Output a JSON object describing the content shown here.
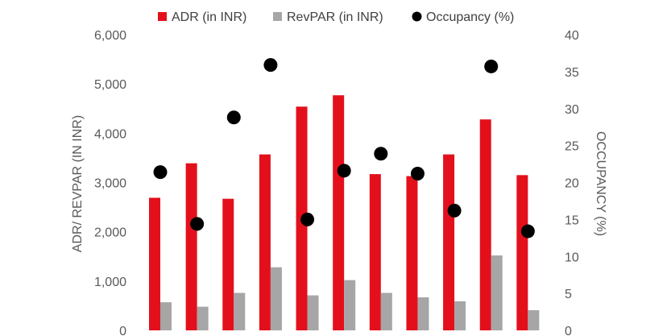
{
  "chart_data": {
    "type": "bar",
    "categories": [
      "",
      "",
      "",
      "",
      "",
      "",
      "",
      "",
      "",
      "",
      ""
    ],
    "series": [
      {
        "name": "ADR (in INR)",
        "axis": "left",
        "kind": "bar",
        "color": "#e3101c",
        "values": [
          2690,
          3390,
          2670,
          3570,
          4540,
          4770,
          3170,
          3130,
          3570,
          4280,
          3150
        ]
      },
      {
        "name": "RevPAR (in INR)",
        "axis": "left",
        "kind": "bar",
        "color": "#a6a6a6",
        "values": [
          570,
          480,
          760,
          1280,
          710,
          1020,
          760,
          670,
          590,
          1520,
          410
        ]
      },
      {
        "name": "Occupancy (%)",
        "axis": "right",
        "kind": "scatter",
        "color": "#000000",
        "values": [
          21.4,
          14.4,
          28.8,
          35.9,
          15.0,
          21.6,
          23.9,
          21.2,
          16.2,
          35.7,
          13.4
        ]
      }
    ],
    "ylabel": "ADR/ REVPAR (IN INR)",
    "y2label": "OCCUPANCY (%)",
    "ylim": [
      0,
      6000
    ],
    "y2lim": [
      0,
      40
    ],
    "yticks": [
      "0",
      "1,000",
      "2,000",
      "3,000",
      "4,000",
      "5,000",
      "6,000"
    ],
    "y2ticks": [
      "0",
      "5",
      "10",
      "15",
      "20",
      "25",
      "30",
      "35",
      "40"
    ],
    "legend_position": "top",
    "grid": false
  }
}
